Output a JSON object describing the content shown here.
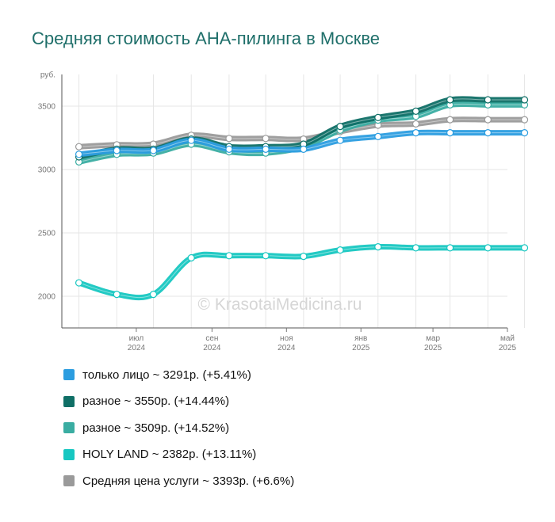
{
  "title": "Средняя стоимость АНА-пилинга в Москве",
  "watermark": "© KrasotaiMedicina.ru",
  "chart_data": {
    "type": "line",
    "ylabel": "руб.",
    "ylim": [
      1750,
      3750
    ],
    "yticks": [
      2000,
      2500,
      3000,
      3500
    ],
    "x": [
      "2024-05-15",
      "2024-06-15",
      "2024-07-15",
      "2024-08-15",
      "2024-09-15",
      "2024-10-15",
      "2024-11-15",
      "2024-12-15",
      "2025-01-15",
      "2025-02-15",
      "2025-03-15",
      "2025-04-15",
      "2025-05-15"
    ],
    "xtick_labels": [
      {
        "month": "июл",
        "year": "2024",
        "date": "2024-07-01"
      },
      {
        "month": "сен",
        "year": "2024",
        "date": "2024-09-01"
      },
      {
        "month": "ноя",
        "year": "2024",
        "date": "2024-11-01"
      },
      {
        "month": "янв",
        "year": "2025",
        "date": "2025-01-01"
      },
      {
        "month": "мар",
        "year": "2025",
        "date": "2025-03-01"
      },
      {
        "month": "май",
        "year": "2025",
        "date": "2025-05-01"
      }
    ],
    "grid": true,
    "series": [
      {
        "name": "только лицо",
        "color": "#2b9de0",
        "values": [
          3120,
          3150,
          3150,
          3230,
          3160,
          3160,
          3160,
          3230,
          3260,
          3290,
          3290,
          3290,
          3290
        ]
      },
      {
        "name": "разное",
        "color": "#0f6f66",
        "values": [
          3100,
          3160,
          3160,
          3240,
          3180,
          3180,
          3200,
          3340,
          3410,
          3460,
          3550,
          3550,
          3550
        ]
      },
      {
        "name": "разное",
        "color": "#3aada2",
        "values": [
          3060,
          3120,
          3130,
          3200,
          3140,
          3130,
          3180,
          3310,
          3390,
          3420,
          3510,
          3510,
          3510
        ]
      },
      {
        "name": "HOLY LAND",
        "color": "#17c7c1",
        "values": [
          2106,
          2015,
          2015,
          2303,
          2320,
          2320,
          2315,
          2365,
          2390,
          2382,
          2382,
          2382,
          2382
        ]
      },
      {
        "name": "Средняя цена услуги",
        "color": "#9a9a9a",
        "values": [
          3180,
          3195,
          3200,
          3270,
          3245,
          3245,
          3240,
          3300,
          3350,
          3360,
          3393,
          3393,
          3393
        ]
      }
    ]
  },
  "legend": [
    {
      "label": "только лицо ~ 3291р. (+5.41%)",
      "color": "#2b9de0"
    },
    {
      "label": "разное ~ 3550р. (+14.44%)",
      "color": "#0f6f66"
    },
    {
      "label": "разное ~ 3509р. (+14.52%)",
      "color": "#3aada2"
    },
    {
      "label": "HOLY LAND ~ 2382р. (+13.11%)",
      "color": "#17c7c1"
    },
    {
      "label": "Средняя цена услуги ~ 3393р. (+6.6%)",
      "color": "#9a9a9a"
    }
  ]
}
